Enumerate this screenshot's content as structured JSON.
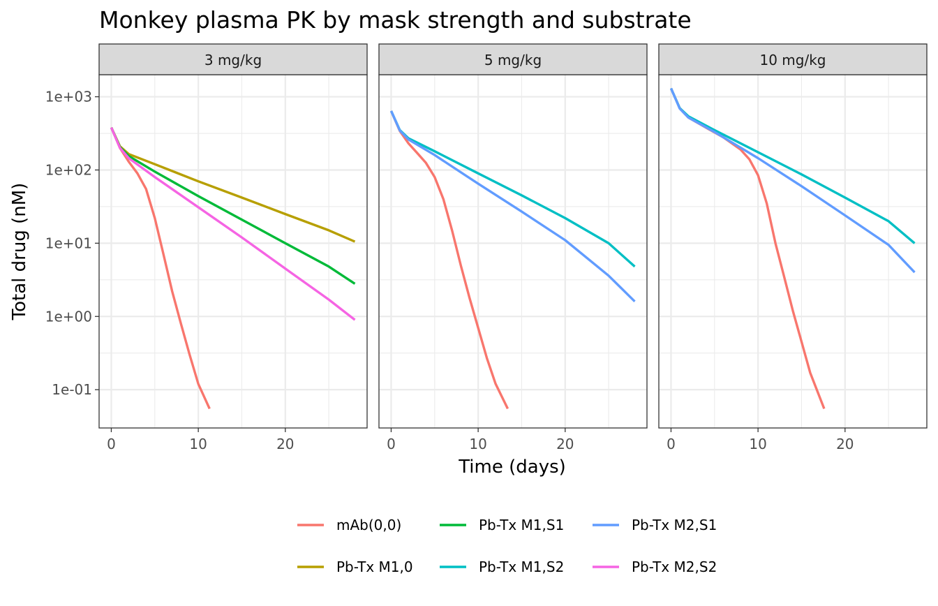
{
  "chart_data": {
    "type": "line",
    "title": "Monkey plasma PK by mask strength and substrate",
    "xlabel": "Time (days)",
    "ylabel": "Total drug (nM)",
    "x_scale": "linear",
    "y_scale": "log10",
    "xlim": [
      -1.4,
      29.4
    ],
    "ylim": [
      0.03,
      2000
    ],
    "x_ticks": [
      0,
      10,
      20
    ],
    "x_tick_labels": [
      "0",
      "10",
      "20"
    ],
    "y_ticks": [
      0.1,
      1,
      10,
      100,
      1000
    ],
    "y_tick_labels": [
      "1e-01",
      "1e+00",
      "1e+01",
      "1e+02",
      "1e+03"
    ],
    "grid": true,
    "legend_position": "bottom",
    "legend_labels": [
      "mAb(0,0)",
      "Pb-Tx M1,S1",
      "Pb-Tx M2,S1",
      "Pb-Tx M1,0",
      "Pb-Tx M1,S2",
      "Pb-Tx M2,S2"
    ],
    "colors": {
      "mAb(0,0)": "#F8766D",
      "Pb-Tx M1,0": "#B79F00",
      "Pb-Tx M1,S1": "#00BA38",
      "Pb-Tx M1,S2": "#00BFC4",
      "Pb-Tx M2,S1": "#619CFF",
      "Pb-Tx M2,S2": "#F564E3"
    },
    "panels": [
      {
        "label": "3 mg/kg",
        "series": [
          {
            "name": "mAb(0,0)",
            "x": [
              0,
              1,
              2,
              3,
              4,
              5,
              6,
              7,
              8,
              9,
              10,
              11.3
            ],
            "y": [
              380,
              200,
              130,
              90,
              55,
              22,
              7,
              2.2,
              0.8,
              0.3,
              0.12,
              0.055
            ]
          },
          {
            "name": "Pb-Tx M1,0",
            "x": [
              0,
              1,
              2,
              5,
              10,
              15,
              20,
              25,
              28
            ],
            "y": [
              380,
              210,
              165,
              120,
              70,
              42,
              25,
              15,
              10.5
            ]
          },
          {
            "name": "Pb-Tx M1,S1",
            "x": [
              0,
              1,
              2,
              5,
              10,
              15,
              20,
              25,
              28
            ],
            "y": [
              380,
              205,
              155,
              95,
              44,
              21,
              10,
              4.8,
              2.8
            ]
          },
          {
            "name": "Pb-Tx M2,S2",
            "x": [
              0,
              1,
              2,
              5,
              10,
              15,
              20,
              25,
              28
            ],
            "y": [
              380,
              200,
              145,
              80,
              31,
              12,
              4.5,
              1.7,
              0.9
            ]
          }
        ]
      },
      {
        "label": "5 mg/kg",
        "series": [
          {
            "name": "mAb(0,0)",
            "x": [
              0,
              1,
              2,
              3,
              4,
              5,
              6,
              7,
              8,
              9,
              10,
              11,
              12,
              13.4
            ],
            "y": [
              640,
              340,
              230,
              170,
              125,
              80,
              40,
              15,
              5,
              1.8,
              0.7,
              0.27,
              0.12,
              0.055
            ]
          },
          {
            "name": "Pb-Tx M1,S2",
            "x": [
              0,
              1,
              2,
              5,
              10,
              15,
              20,
              25,
              28
            ],
            "y": [
              640,
              350,
              270,
              180,
              90,
              45,
              22,
              10,
              4.8
            ]
          },
          {
            "name": "Pb-Tx M2,S1",
            "x": [
              0,
              1,
              2,
              5,
              10,
              15,
              20,
              25,
              28
            ],
            "y": [
              640,
              345,
              260,
              160,
              65,
              27,
              11,
              3.6,
              1.6
            ]
          }
        ]
      },
      {
        "label": "10 mg/kg",
        "series": [
          {
            "name": "mAb(0,0)",
            "x": [
              0,
              1,
              2,
              4,
              6,
              8,
              9,
              10,
              11,
              12,
              13,
              14,
              15,
              16,
              17.6
            ],
            "y": [
              1300,
              700,
              520,
              380,
              280,
              190,
              140,
              85,
              35,
              10,
              3.5,
              1.2,
              0.45,
              0.17,
              0.055
            ]
          },
          {
            "name": "Pb-Tx M1,S2",
            "x": [
              0,
              1,
              2,
              5,
              10,
              15,
              20,
              25,
              28
            ],
            "y": [
              1300,
              700,
              540,
              350,
              175,
              87,
              42,
              20,
              10
            ]
          },
          {
            "name": "Pb-Tx M2,S1",
            "x": [
              0,
              1,
              2,
              5,
              10,
              15,
              20,
              25,
              28
            ],
            "y": [
              1300,
              690,
              520,
              330,
              145,
              60,
              24,
              9.5,
              4
            ]
          }
        ]
      }
    ]
  }
}
